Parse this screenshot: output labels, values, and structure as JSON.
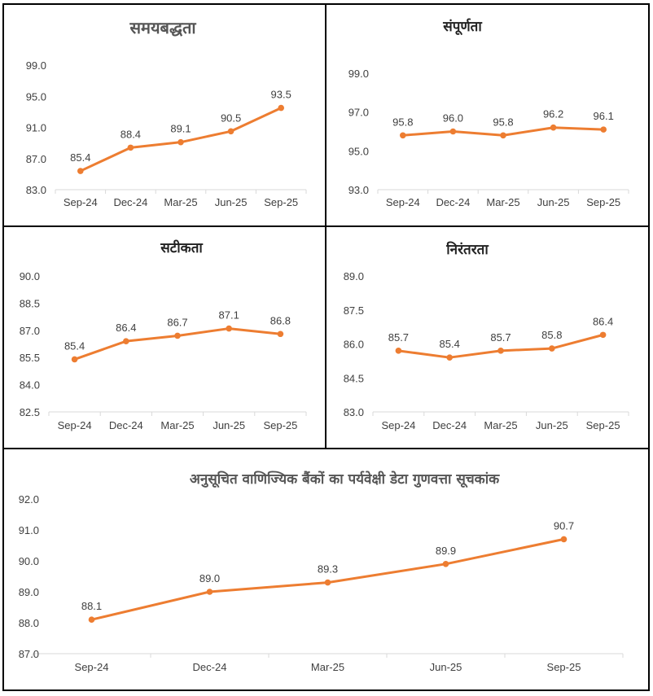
{
  "series_color": "#ED7D31",
  "chart_data": [
    {
      "id": "timeliness",
      "type": "line",
      "title": "समयबद्धता",
      "categories": [
        "Sep-24",
        "Dec-24",
        "Mar-25",
        "Jun-25",
        "Sep-25"
      ],
      "values": [
        85.4,
        88.4,
        89.1,
        90.5,
        93.5
      ],
      "data_labels": [
        "85.4",
        "88.4",
        "89.1",
        "90.5",
        "93.5"
      ],
      "yticks": [
        "83.0",
        "87.0",
        "91.0",
        "95.0",
        "99.0"
      ],
      "ylim": [
        83,
        99
      ],
      "xlabel": "",
      "ylabel": "",
      "grid": false,
      "legend": "none"
    },
    {
      "id": "completeness",
      "type": "line",
      "title": "संपूर्णता",
      "categories": [
        "Sep-24",
        "Dec-24",
        "Mar-25",
        "Jun-25",
        "Sep-25"
      ],
      "values": [
        95.8,
        96.0,
        95.8,
        96.2,
        96.1
      ],
      "data_labels": [
        "95.8",
        "96.0",
        "95.8",
        "96.2",
        "96.1"
      ],
      "yticks": [
        "93.0",
        "95.0",
        "97.0",
        "99.0"
      ],
      "ylim": [
        93,
        99
      ],
      "xlabel": "",
      "ylabel": "",
      "grid": false,
      "legend": "none"
    },
    {
      "id": "accuracy",
      "type": "line",
      "title": "सटीकता",
      "categories": [
        "Sep-24",
        "Dec-24",
        "Mar-25",
        "Jun-25",
        "Sep-25"
      ],
      "values": [
        85.4,
        86.4,
        86.7,
        87.1,
        86.8
      ],
      "data_labels": [
        "85.4",
        "86.4",
        "86.7",
        "87.1",
        "86.8"
      ],
      "yticks": [
        "82.5",
        "84.0",
        "85.5",
        "87.0",
        "88.5",
        "90.0"
      ],
      "ylim": [
        82.5,
        90.0
      ],
      "xlabel": "",
      "ylabel": "",
      "grid": false,
      "legend": "none"
    },
    {
      "id": "continuity",
      "type": "line",
      "title": "निरंतरता",
      "categories": [
        "Sep-24",
        "Dec-24",
        "Mar-25",
        "Jun-25",
        "Sep-25"
      ],
      "values": [
        85.7,
        85.4,
        85.7,
        85.8,
        86.4
      ],
      "data_labels": [
        "85.7",
        "85.4",
        "85.7",
        "85.8",
        "86.4"
      ],
      "yticks": [
        "83.0",
        "84.5",
        "86.0",
        "87.5",
        "89.0"
      ],
      "ylim": [
        83.0,
        89.0
      ],
      "xlabel": "",
      "ylabel": "",
      "grid": false,
      "legend": "none"
    },
    {
      "id": "overall-index",
      "type": "line",
      "title": "अनुसूचित वाणिज्यिक बैंकों का पर्यवेक्षी डेटा गुणवत्ता सूचकांक",
      "categories": [
        "Sep-24",
        "Dec-24",
        "Mar-25",
        "Jun-25",
        "Sep-25"
      ],
      "values": [
        88.1,
        89.0,
        89.3,
        89.9,
        90.7
      ],
      "data_labels": [
        "88.1",
        "89.0",
        "89.3",
        "89.9",
        "90.7"
      ],
      "yticks": [
        "87.0",
        "88.0",
        "89.0",
        "90.0",
        "91.0",
        "92.0"
      ],
      "ylim": [
        87.0,
        92.0
      ],
      "xlabel": "",
      "ylabel": "",
      "grid": false,
      "legend": "none"
    }
  ]
}
